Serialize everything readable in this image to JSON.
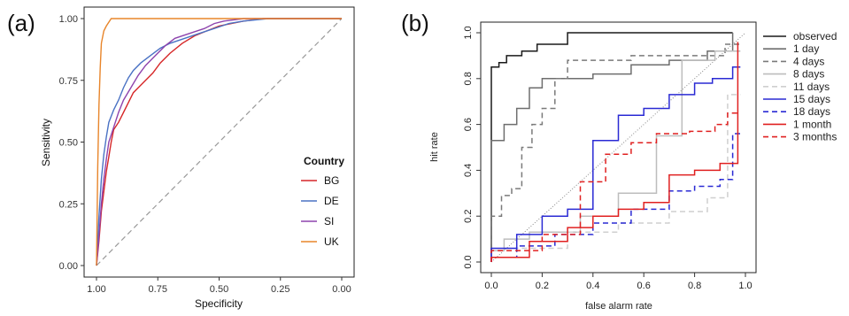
{
  "chart_data": [
    {
      "panel_label": "(a)",
      "type": "line",
      "xlabel": "Specificity",
      "ylabel": "Sensitivity",
      "xlim": [
        1.0,
        0.0
      ],
      "ylim": [
        0.0,
        1.0
      ],
      "xticks": [
        "1.00",
        "0.75",
        "0.50",
        "0.25",
        "0.00"
      ],
      "yticks": [
        "0.00",
        "0.25",
        "0.50",
        "0.75",
        "1.00"
      ],
      "grid": false,
      "legend": {
        "title": "Country",
        "placement": "right"
      },
      "diagonal": {
        "style": "dashed",
        "color": "#999999"
      },
      "series": [
        {
          "name": "BG",
          "color": "#d62728",
          "points": [
            [
              1.0,
              0.0
            ],
            [
              0.99,
              0.1
            ],
            [
              0.98,
              0.22
            ],
            [
              0.97,
              0.3
            ],
            [
              0.96,
              0.38
            ],
            [
              0.95,
              0.44
            ],
            [
              0.94,
              0.5
            ],
            [
              0.93,
              0.55
            ],
            [
              0.91,
              0.58
            ],
            [
              0.89,
              0.62
            ],
            [
              0.87,
              0.66
            ],
            [
              0.85,
              0.7
            ],
            [
              0.83,
              0.72
            ],
            [
              0.8,
              0.75
            ],
            [
              0.77,
              0.78
            ],
            [
              0.74,
              0.82
            ],
            [
              0.7,
              0.86
            ],
            [
              0.65,
              0.9
            ],
            [
              0.6,
              0.93
            ],
            [
              0.55,
              0.95
            ],
            [
              0.5,
              0.97
            ],
            [
              0.45,
              0.98
            ],
            [
              0.4,
              0.99
            ],
            [
              0.32,
              1.0
            ],
            [
              0.0,
              1.0
            ]
          ]
        },
        {
          "name": "DE",
          "color": "#4a72c4",
          "points": [
            [
              1.0,
              0.0
            ],
            [
              0.99,
              0.2
            ],
            [
              0.98,
              0.35
            ],
            [
              0.97,
              0.45
            ],
            [
              0.96,
              0.52
            ],
            [
              0.95,
              0.58
            ],
            [
              0.93,
              0.63
            ],
            [
              0.91,
              0.67
            ],
            [
              0.89,
              0.72
            ],
            [
              0.87,
              0.76
            ],
            [
              0.85,
              0.79
            ],
            [
              0.82,
              0.82
            ],
            [
              0.78,
              0.85
            ],
            [
              0.74,
              0.88
            ],
            [
              0.7,
              0.9
            ],
            [
              0.64,
              0.92
            ],
            [
              0.58,
              0.94
            ],
            [
              0.52,
              0.96
            ],
            [
              0.46,
              0.98
            ],
            [
              0.4,
              0.99
            ],
            [
              0.3,
              1.0
            ],
            [
              0.0,
              1.0
            ]
          ]
        },
        {
          "name": "SI",
          "color": "#8e44ad",
          "points": [
            [
              1.0,
              0.0
            ],
            [
              0.99,
              0.12
            ],
            [
              0.98,
              0.25
            ],
            [
              0.97,
              0.35
            ],
            [
              0.96,
              0.43
            ],
            [
              0.95,
              0.5
            ],
            [
              0.93,
              0.56
            ],
            [
              0.91,
              0.62
            ],
            [
              0.89,
              0.67
            ],
            [
              0.86,
              0.72
            ],
            [
              0.83,
              0.77
            ],
            [
              0.8,
              0.81
            ],
            [
              0.76,
              0.85
            ],
            [
              0.72,
              0.89
            ],
            [
              0.68,
              0.92
            ],
            [
              0.62,
              0.94
            ],
            [
              0.56,
              0.96
            ],
            [
              0.52,
              0.98
            ],
            [
              0.48,
              0.99
            ],
            [
              0.4,
              1.0
            ],
            [
              0.0,
              1.0
            ]
          ]
        },
        {
          "name": "UK",
          "color": "#e8852a",
          "points": [
            [
              1.0,
              0.0
            ],
            [
              0.995,
              0.4
            ],
            [
              0.99,
              0.65
            ],
            [
              0.985,
              0.8
            ],
            [
              0.98,
              0.9
            ],
            [
              0.97,
              0.95
            ],
            [
              0.96,
              0.97
            ],
            [
              0.94,
              1.0
            ],
            [
              0.0,
              1.0
            ]
          ]
        }
      ]
    },
    {
      "panel_label": "(b)",
      "type": "line",
      "xlabel": "false alarm rate",
      "ylabel": "hit rate",
      "xlim": [
        0.0,
        1.0
      ],
      "ylim": [
        0.0,
        1.0
      ],
      "xticks": [
        "0.0",
        "0.2",
        "0.4",
        "0.6",
        "0.8",
        "1.0"
      ],
      "yticks": [
        "0.0",
        "0.2",
        "0.4",
        "0.6",
        "0.8",
        "1.0"
      ],
      "grid": false,
      "legend": {
        "placement": "right"
      },
      "diagonal": {
        "style": "dotted",
        "color": "#888888"
      },
      "series": [
        {
          "name": "observed",
          "color": "#1a1a1a",
          "dash": "",
          "points": [
            [
              0,
              0
            ],
            [
              0,
              0.85
            ],
            [
              0.03,
              0.85
            ],
            [
              0.03,
              0.87
            ],
            [
              0.06,
              0.87
            ],
            [
              0.06,
              0.9
            ],
            [
              0.12,
              0.9
            ],
            [
              0.12,
              0.92
            ],
            [
              0.18,
              0.92
            ],
            [
              0.18,
              0.95
            ],
            [
              0.3,
              0.95
            ],
            [
              0.3,
              1.0
            ],
            [
              0.95,
              1.0
            ]
          ]
        },
        {
          "name": "1 day",
          "color": "#6e6e6e",
          "dash": "",
          "points": [
            [
              0,
              0
            ],
            [
              0,
              0.53
            ],
            [
              0.05,
              0.53
            ],
            [
              0.05,
              0.6
            ],
            [
              0.1,
              0.6
            ],
            [
              0.1,
              0.67
            ],
            [
              0.15,
              0.67
            ],
            [
              0.15,
              0.76
            ],
            [
              0.2,
              0.76
            ],
            [
              0.2,
              0.8
            ],
            [
              0.4,
              0.8
            ],
            [
              0.4,
              0.82
            ],
            [
              0.55,
              0.82
            ],
            [
              0.55,
              0.86
            ],
            [
              0.7,
              0.86
            ],
            [
              0.7,
              0.88
            ],
            [
              0.85,
              0.88
            ],
            [
              0.85,
              0.92
            ],
            [
              0.95,
              0.92
            ],
            [
              0.95,
              1.0
            ]
          ]
        },
        {
          "name": "4 days",
          "color": "#7a7a7a",
          "dash": "6,4",
          "points": [
            [
              0,
              0
            ],
            [
              0,
              0.2
            ],
            [
              0.04,
              0.2
            ],
            [
              0.04,
              0.29
            ],
            [
              0.08,
              0.29
            ],
            [
              0.08,
              0.32
            ],
            [
              0.12,
              0.32
            ],
            [
              0.12,
              0.5
            ],
            [
              0.16,
              0.5
            ],
            [
              0.16,
              0.6
            ],
            [
              0.2,
              0.6
            ],
            [
              0.2,
              0.67
            ],
            [
              0.25,
              0.67
            ],
            [
              0.25,
              0.8
            ],
            [
              0.3,
              0.8
            ],
            [
              0.3,
              0.88
            ],
            [
              0.55,
              0.88
            ],
            [
              0.55,
              0.9
            ],
            [
              0.92,
              0.9
            ],
            [
              0.92,
              0.95
            ],
            [
              0.98,
              0.95
            ]
          ]
        },
        {
          "name": "8 days",
          "color": "#bdbdbd",
          "dash": "",
          "points": [
            [
              0,
              0
            ],
            [
              0,
              0.05
            ],
            [
              0.05,
              0.05
            ],
            [
              0.05,
              0.1
            ],
            [
              0.15,
              0.1
            ],
            [
              0.15,
              0.13
            ],
            [
              0.35,
              0.13
            ],
            [
              0.35,
              0.2
            ],
            [
              0.5,
              0.2
            ],
            [
              0.5,
              0.3
            ],
            [
              0.65,
              0.3
            ],
            [
              0.65,
              0.55
            ],
            [
              0.75,
              0.55
            ],
            [
              0.75,
              0.88
            ],
            [
              0.88,
              0.88
            ],
            [
              0.88,
              0.92
            ],
            [
              0.98,
              0.92
            ]
          ]
        },
        {
          "name": "11 days",
          "color": "#cfcfcf",
          "dash": "6,4",
          "points": [
            [
              0,
              0
            ],
            [
              0,
              0.02
            ],
            [
              0.1,
              0.02
            ],
            [
              0.1,
              0.06
            ],
            [
              0.3,
              0.06
            ],
            [
              0.3,
              0.13
            ],
            [
              0.5,
              0.13
            ],
            [
              0.5,
              0.17
            ],
            [
              0.7,
              0.17
            ],
            [
              0.7,
              0.22
            ],
            [
              0.85,
              0.22
            ],
            [
              0.85,
              0.28
            ],
            [
              0.93,
              0.28
            ],
            [
              0.93,
              0.73
            ],
            [
              0.98,
              0.73
            ]
          ]
        },
        {
          "name": "15 days",
          "color": "#2a2ad4",
          "dash": "",
          "points": [
            [
              0,
              0
            ],
            [
              0,
              0.06
            ],
            [
              0.1,
              0.06
            ],
            [
              0.1,
              0.12
            ],
            [
              0.2,
              0.12
            ],
            [
              0.2,
              0.2
            ],
            [
              0.3,
              0.2
            ],
            [
              0.3,
              0.23
            ],
            [
              0.4,
              0.23
            ],
            [
              0.4,
              0.53
            ],
            [
              0.5,
              0.53
            ],
            [
              0.5,
              0.64
            ],
            [
              0.6,
              0.64
            ],
            [
              0.6,
              0.67
            ],
            [
              0.7,
              0.67
            ],
            [
              0.7,
              0.73
            ],
            [
              0.8,
              0.73
            ],
            [
              0.8,
              0.78
            ],
            [
              0.87,
              0.78
            ],
            [
              0.87,
              0.8
            ],
            [
              0.95,
              0.8
            ],
            [
              0.95,
              0.85
            ],
            [
              0.98,
              0.85
            ]
          ]
        },
        {
          "name": "18 days",
          "color": "#2a2ad4",
          "dash": "6,4",
          "points": [
            [
              0,
              0
            ],
            [
              0,
              0.02
            ],
            [
              0.1,
              0.02
            ],
            [
              0.1,
              0.07
            ],
            [
              0.25,
              0.07
            ],
            [
              0.25,
              0.12
            ],
            [
              0.4,
              0.12
            ],
            [
              0.4,
              0.17
            ],
            [
              0.55,
              0.17
            ],
            [
              0.55,
              0.23
            ],
            [
              0.7,
              0.23
            ],
            [
              0.7,
              0.31
            ],
            [
              0.8,
              0.31
            ],
            [
              0.8,
              0.33
            ],
            [
              0.9,
              0.33
            ],
            [
              0.9,
              0.36
            ],
            [
              0.95,
              0.36
            ],
            [
              0.95,
              0.56
            ],
            [
              0.98,
              0.56
            ]
          ]
        },
        {
          "name": "1 month",
          "color": "#e02020",
          "dash": "",
          "points": [
            [
              0,
              0
            ],
            [
              0,
              0.02
            ],
            [
              0.15,
              0.02
            ],
            [
              0.15,
              0.09
            ],
            [
              0.3,
              0.09
            ],
            [
              0.3,
              0.15
            ],
            [
              0.4,
              0.15
            ],
            [
              0.4,
              0.2
            ],
            [
              0.5,
              0.2
            ],
            [
              0.5,
              0.23
            ],
            [
              0.6,
              0.23
            ],
            [
              0.6,
              0.26
            ],
            [
              0.7,
              0.26
            ],
            [
              0.7,
              0.38
            ],
            [
              0.8,
              0.38
            ],
            [
              0.8,
              0.4
            ],
            [
              0.9,
              0.4
            ],
            [
              0.9,
              0.43
            ],
            [
              0.97,
              0.43
            ],
            [
              0.97,
              0.96
            ]
          ]
        },
        {
          "name": "3 months",
          "color": "#e02020",
          "dash": "6,4",
          "points": [
            [
              0,
              0
            ],
            [
              0,
              0.05
            ],
            [
              0.2,
              0.05
            ],
            [
              0.2,
              0.12
            ],
            [
              0.35,
              0.12
            ],
            [
              0.35,
              0.35
            ],
            [
              0.45,
              0.35
            ],
            [
              0.45,
              0.47
            ],
            [
              0.55,
              0.47
            ],
            [
              0.55,
              0.52
            ],
            [
              0.65,
              0.52
            ],
            [
              0.65,
              0.56
            ],
            [
              0.78,
              0.56
            ],
            [
              0.78,
              0.57
            ],
            [
              0.88,
              0.57
            ],
            [
              0.88,
              0.6
            ],
            [
              0.93,
              0.6
            ],
            [
              0.93,
              0.65
            ],
            [
              0.98,
              0.65
            ]
          ]
        }
      ]
    }
  ]
}
